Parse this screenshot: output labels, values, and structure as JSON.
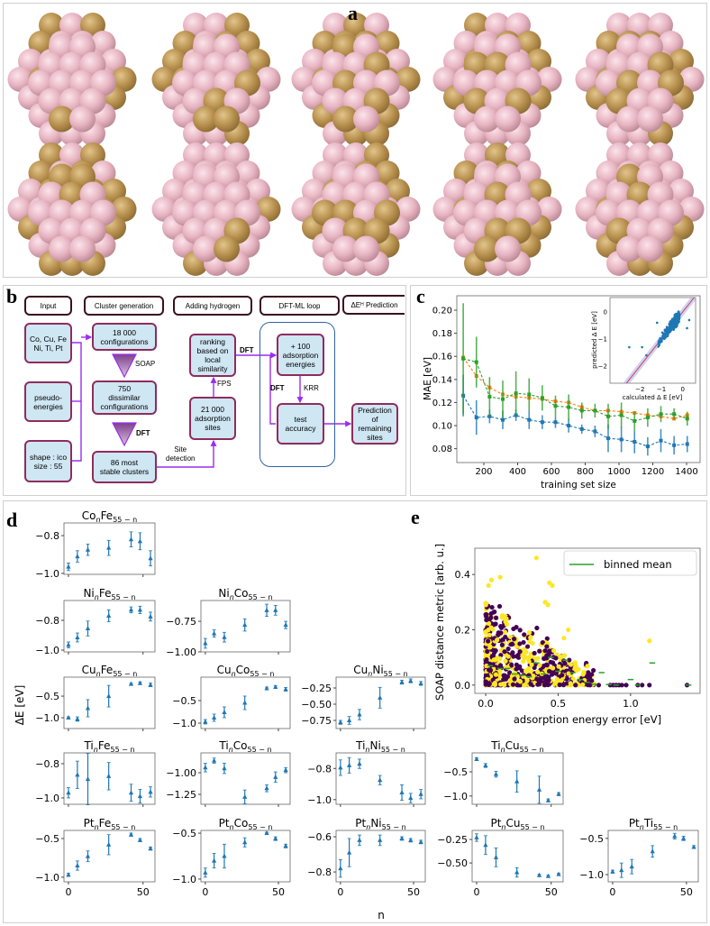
{
  "panels": {
    "a": "a",
    "b": "b",
    "c": "c",
    "d": "d",
    "e": "e"
  },
  "flowchart": {
    "headers": [
      "Input",
      "Cluster generation",
      "Adding hydrogen",
      "DFT-ML loop"
    ],
    "prediction_header": {
      "main": "ΔE",
      "sub": "H",
      "rest": " Prediction"
    },
    "boxes": {
      "elements": "Co, Cu, Fe\nNi, Ti, Pt",
      "pseudo": "pseudo-\nenergies",
      "shape": "shape : ico\nsize : 55",
      "configs": "18 000\nconfigurations",
      "dissimilar": "750\ndissimilar\nconfigurations",
      "stable": "86 most\nstable clusters",
      "ranking": "ranking\nbased on\nlocal\nsimilarity",
      "sites": "21 000\nadsorption\nsites",
      "plus100": "+ 100\nadsorption\nenergies",
      "test": "test\naccuracy",
      "prediction": "Prediction\nof\nremaining\nsites"
    },
    "edge_labels": {
      "soap": "SOAP",
      "dft_tri": "DFT",
      "site_detection": "Site\ndetection",
      "fps": "FPS",
      "dft_top": "DFT",
      "dft_loop": "DFT",
      "krr": "KRR"
    }
  },
  "colors": {
    "pink_atom": "#e7b5c2",
    "gold_atom": "#b8914f",
    "flow_purple": "#9b2cf0",
    "box_fill": "#cfe6f3",
    "box_border": "#8e2c5c",
    "loop_border": "#2f63a8",
    "blue": "#1f77b4",
    "orange": "#ff7f0e",
    "green": "#2ca02c",
    "purple_pts": "#440154",
    "yellow_pts": "#fde725"
  },
  "chart_data": [
    {
      "panel": "c",
      "type": "line",
      "xlabel": "training set size",
      "ylabel": "MAE [eV]",
      "xlim": [
        40,
        1480
      ],
      "ylim": [
        0.068,
        0.2125
      ],
      "xticks": [
        "200",
        "400",
        "600",
        "800",
        "1000",
        "1200",
        "1400"
      ],
      "yticks": [
        "0.08",
        "0.10",
        "0.12",
        "0.14",
        "0.16",
        "0.18",
        "0.20"
      ],
      "x": [
        78,
        156,
        234,
        312,
        390,
        468,
        546,
        624,
        702,
        780,
        858,
        936,
        1014,
        1092,
        1170,
        1248,
        1326,
        1404
      ],
      "series": [
        {
          "name": "blue",
          "color": "#1f77b4",
          "values": [
            0.126,
            0.107,
            0.108,
            0.105,
            0.109,
            0.105,
            0.103,
            0.103,
            0.1,
            0.097,
            0.095,
            0.089,
            0.088,
            0.086,
            0.082,
            0.087,
            0.083,
            0.084
          ],
          "err": [
            0.018,
            0.015,
            0.006,
            0.008,
            0.005,
            0.008,
            0.006,
            0.005,
            0.006,
            0.004,
            0.005,
            0.012,
            0.011,
            0.01,
            0.008,
            0.01,
            0.008,
            0.007
          ]
        },
        {
          "name": "orange",
          "color": "#ff7f0e",
          "values": [
            0.159,
            0.143,
            0.133,
            0.127,
            0.125,
            0.124,
            0.123,
            0.121,
            0.12,
            0.116,
            0.113,
            0.113,
            0.112,
            0.111,
            0.109,
            0.108,
            0.106,
            0.109
          ],
          "err": [
            0,
            0,
            0,
            0,
            0,
            0,
            0,
            0,
            0,
            0,
            0,
            0,
            0,
            0,
            0,
            0,
            0,
            0
          ]
        },
        {
          "name": "green",
          "color": "#2ca02c",
          "values": [
            0.158,
            0.155,
            0.125,
            0.123,
            0.128,
            0.127,
            0.124,
            0.117,
            0.116,
            0.113,
            0.113,
            0.108,
            0.109,
            0.104,
            0.107,
            0.11,
            0.11,
            0.106
          ],
          "err": [
            0.048,
            0.022,
            0.017,
            0.016,
            0.019,
            0.014,
            0.011,
            0.009,
            0.011,
            0.007,
            0.006,
            0.011,
            0.011,
            0.008,
            0.008,
            0.007,
            0.005,
            0.006
          ]
        }
      ],
      "inset": {
        "type": "scatter",
        "xlabel": "calculated Δ E [eV]",
        "ylabel": "predicted Δ E [eV]",
        "xlim": [
          -3.4,
          0.6
        ],
        "ylim": [
          -2.63,
          0.53
        ],
        "xticks": [
          -2,
          -1,
          0
        ],
        "yticks": [
          -2,
          -1,
          0
        ],
        "xtick_labels": [
          "−2",
          "−1",
          "0"
        ],
        "ytick_labels": [
          "−2",
          "−1",
          "0"
        ],
        "diagonal": "y = x"
      }
    },
    {
      "panel": "d",
      "type": "scatter",
      "xlabel": "n",
      "ylabel": "ΔE [eV]",
      "xlim": [
        -3,
        58
      ],
      "xticks": [
        0,
        50
      ],
      "xtick_labels": [
        "0",
        "50"
      ],
      "x": [
        0,
        6,
        13,
        27,
        42,
        48,
        55
      ],
      "subplots": [
        {
          "a": "Co",
          "b": "Fe",
          "sub_n": "n",
          "sub_rest": "55 − n",
          "ylim": [
            -1.005,
            -0.733
          ],
          "yticks": [
            -0.8,
            -1.0
          ],
          "ytick_labels": [
            "−0.8",
            "−1.0"
          ],
          "values": [
            -0.965,
            -0.91,
            -0.875,
            -0.865,
            -0.82,
            -0.83,
            -0.92
          ],
          "err": [
            0.02,
            0.03,
            0.03,
            0.04,
            0.04,
            0.045,
            0.04
          ]
        },
        {
          "a": "Ni",
          "b": "Fe",
          "sub_n": "n",
          "sub_rest": "55 − n",
          "ylim": [
            -1.012,
            -0.667
          ],
          "yticks": [
            -0.8,
            -1.0
          ],
          "ytick_labels": [
            "−0.8",
            "−1.0"
          ],
          "values": [
            -0.965,
            -0.915,
            -0.855,
            -0.77,
            -0.73,
            -0.73,
            -0.775
          ],
          "err": [
            0.02,
            0.03,
            0.05,
            0.04,
            0.02,
            0.025,
            0.03
          ]
        },
        {
          "a": "Ni",
          "b": "Co",
          "sub_n": "n",
          "sub_rest": "55 − n",
          "ylim": [
            -1.0,
            -0.58
          ],
          "yticks": [
            -0.75,
            -1.0
          ],
          "ytick_labels": [
            "−0.75",
            "−1.00"
          ],
          "values": [
            -0.93,
            -0.85,
            -0.88,
            -0.78,
            -0.66,
            -0.66,
            -0.78
          ],
          "err": [
            0.04,
            0.03,
            0.04,
            0.05,
            0.05,
            0.04,
            0.03
          ]
        },
        {
          "a": "Cu",
          "b": "Fe",
          "sub_n": "n",
          "sub_rest": "55 − n",
          "ylim": [
            -1.25,
            -0.06
          ],
          "yticks": [
            -0.5,
            -1.0
          ],
          "ytick_labels": [
            "−0.5",
            "−1.0"
          ],
          "values": [
            -1.0,
            -1.03,
            -0.78,
            -0.5,
            -0.22,
            -0.2,
            -0.24
          ],
          "err": [
            0.02,
            0.05,
            0.2,
            0.25,
            0.02,
            0.03,
            0.04
          ]
        },
        {
          "a": "Cu",
          "b": "Co",
          "sub_n": "n",
          "sub_rest": "55 − n",
          "ylim": [
            -1.12,
            0.02
          ],
          "yticks": [
            -0.5,
            -1.0
          ],
          "ytick_labels": [
            "−0.5",
            "−1.0"
          ],
          "values": [
            -0.97,
            -0.88,
            -0.76,
            -0.55,
            -0.23,
            -0.2,
            -0.25
          ],
          "err": [
            0.05,
            0.08,
            0.12,
            0.15,
            0.03,
            0.03,
            0.04
          ]
        },
        {
          "a": "Cu",
          "b": "Ni",
          "sub_n": "n",
          "sub_rest": "55 − n",
          "ylim": [
            -0.875,
            -0.083
          ],
          "yticks": [
            -0.25,
            -0.5,
            -0.75
          ],
          "ytick_labels": [
            "−0.25",
            "−0.50",
            "−0.75"
          ],
          "values": [
            -0.78,
            -0.75,
            -0.66,
            -0.4,
            -0.16,
            -0.14,
            -0.18
          ],
          "err": [
            0.03,
            0.06,
            0.08,
            0.16,
            0.03,
            0.03,
            0.03
          ]
        },
        {
          "a": "Ti",
          "b": "Fe",
          "sub_n": "n",
          "sub_rest": "55 − n",
          "ylim": [
            -1.037,
            -0.737
          ],
          "yticks": [
            -0.8,
            -1.0
          ],
          "ytick_labels": [
            "−0.8",
            "−1.0"
          ],
          "values": [
            -0.97,
            -0.865,
            -0.89,
            -0.873,
            -0.97,
            -0.99,
            -0.965
          ],
          "err": [
            0.03,
            0.08,
            0.15,
            0.08,
            0.05,
            0.04,
            0.03
          ]
        },
        {
          "a": "Ti",
          "b": "Co",
          "sub_n": "n",
          "sub_rest": "55 − n",
          "ylim": [
            -1.365,
            -0.77
          ],
          "yticks": [
            -1.0,
            -1.25
          ],
          "ytick_labels": [
            "−1.00",
            "−1.25"
          ],
          "values": [
            -0.94,
            -0.86,
            -0.95,
            -1.28,
            -1.18,
            -1.05,
            -0.97
          ],
          "err": [
            0.05,
            0.03,
            0.06,
            0.08,
            0.04,
            0.06,
            0.03
          ]
        },
        {
          "a": "Ti",
          "b": "Ni",
          "sub_n": "n",
          "sub_rest": "55 − n",
          "ylim": [
            -1.03,
            -0.7
          ],
          "yticks": [
            -0.8,
            -1.0
          ],
          "ytick_labels": [
            "−0.8",
            "−1.0"
          ],
          "values": [
            -0.795,
            -0.78,
            -0.77,
            -0.875,
            -0.955,
            -0.99,
            -0.965
          ],
          "err": [
            0.05,
            0.05,
            0.03,
            0.03,
            0.05,
            0.03,
            0.03
          ]
        },
        {
          "a": "Ti",
          "b": "Cu",
          "sub_n": "n",
          "sub_rest": "55 − n",
          "ylim": [
            -1.17,
            -0.11
          ],
          "yticks": [
            -0.5,
            -1.0
          ],
          "ytick_labels": [
            "−0.5",
            "−1.0"
          ],
          "values": [
            -0.24,
            -0.37,
            -0.55,
            -0.7,
            -0.87,
            -1.09,
            -0.96
          ],
          "err": [
            0.03,
            0.04,
            0.06,
            0.22,
            0.28,
            0.03,
            0.03
          ]
        },
        {
          "a": "Pt",
          "b": "Fe",
          "sub_n": "n",
          "sub_rest": "55 − n",
          "ylim": [
            -1.06,
            -0.395
          ],
          "yticks": [
            -0.5,
            -1.0
          ],
          "ytick_labels": [
            "−0.5",
            "−1.0"
          ],
          "values": [
            -0.97,
            -0.85,
            -0.73,
            -0.58,
            -0.45,
            -0.52,
            -0.63
          ],
          "err": [
            0.02,
            0.06,
            0.07,
            0.13,
            0.02,
            0.02,
            0.02
          ]
        },
        {
          "a": "Pt",
          "b": "Co",
          "sub_n": "n",
          "sub_rest": "55 − n",
          "ylim": [
            -1.03,
            -0.47
          ],
          "yticks": [
            -0.5,
            -1.0
          ],
          "ytick_labels": [
            "−0.5",
            "−1.0"
          ],
          "values": [
            -0.93,
            -0.8,
            -0.75,
            -0.6,
            -0.5,
            -0.56,
            -0.64
          ],
          "err": [
            0.05,
            0.08,
            0.13,
            0.05,
            0.01,
            0.02,
            0.02
          ]
        },
        {
          "a": "Pt",
          "b": "Ni",
          "sub_n": "n",
          "sub_rest": "55 − n",
          "ylim": [
            -0.856,
            -0.564
          ],
          "yticks": [
            -0.6,
            -0.8
          ],
          "ytick_labels": [
            "−0.6",
            "−0.8"
          ],
          "values": [
            -0.78,
            -0.69,
            -0.62,
            -0.62,
            -0.61,
            -0.62,
            -0.63
          ],
          "err": [
            0.05,
            0.08,
            0.03,
            0.03,
            0.01,
            0.01,
            0.01
          ]
        },
        {
          "a": "Pt",
          "b": "Cu",
          "sub_n": "n",
          "sub_rest": "55 − n",
          "ylim": [
            -0.7,
            -0.154
          ],
          "yticks": [
            -0.25,
            -0.5
          ],
          "ytick_labels": [
            "−0.25",
            "−0.50"
          ],
          "values": [
            -0.23,
            -0.31,
            -0.44,
            -0.6,
            -0.63,
            -0.64,
            -0.62
          ],
          "err": [
            0.04,
            0.1,
            0.1,
            0.05,
            0.01,
            0.01,
            0.01
          ]
        },
        {
          "a": "Pt",
          "b": "Ti",
          "sub_n": "n",
          "sub_rest": "55 − n",
          "ylim": [
            -1.1,
            -0.39
          ],
          "yticks": [
            -0.5,
            -1.0
          ],
          "ytick_labels": [
            "−0.5",
            "−1.0"
          ],
          "values": [
            -0.96,
            -0.94,
            -0.89,
            -0.68,
            -0.47,
            -0.5,
            -0.62
          ],
          "err": [
            0.02,
            0.1,
            0.1,
            0.08,
            0.04,
            0.03,
            0.02
          ]
        }
      ]
    },
    {
      "panel": "e",
      "type": "scatter",
      "xlabel": "adsorption energy error [eV]",
      "ylabel": "SOAP distance metric [arb. u.]",
      "xlim": [
        -0.075,
        1.48
      ],
      "ylim": [
        -0.03,
        0.495
      ],
      "xticks": [
        0.0,
        0.5,
        1.0
      ],
      "xtick_labels": [
        "0.0",
        "0.5",
        "1.0"
      ],
      "yticks": [
        0.0,
        0.2,
        0.4
      ],
      "ytick_labels": [
        "0.0",
        "0.2",
        "0.4"
      ],
      "legend": {
        "label": "binned mean",
        "placement": "top-right"
      },
      "binned_mean": {
        "x": [
          0.03,
          0.1,
          0.15,
          0.2,
          0.25,
          0.3,
          0.35,
          0.4,
          0.45,
          0.5,
          0.55,
          0.6,
          0.65,
          0.7,
          0.75,
          0.8,
          0.85,
          0.9,
          1.0,
          1.05,
          1.15,
          1.4
        ],
        "y": [
          0.07,
          0.06,
          0.06,
          0.04,
          0.035,
          0.03,
          0.08,
          0.04,
          0.1,
          0.05,
          0.09,
          0.045,
          0.02,
          0.01,
          0.003,
          0.045,
          0.002,
          0.0,
          0.02,
          0.0,
          0.08,
          0.0
        ]
      },
      "outliers": {
        "x": [
          0.35,
          0.44,
          0.46,
          0.41,
          0.43,
          0.57,
          0.54,
          1.13,
          0.1,
          0.04,
          0.02
        ],
        "y": [
          0.46,
          0.37,
          0.36,
          0.3,
          0.29,
          0.2,
          0.17,
          0.16,
          0.39,
          0.38,
          0.36
        ]
      }
    }
  ]
}
